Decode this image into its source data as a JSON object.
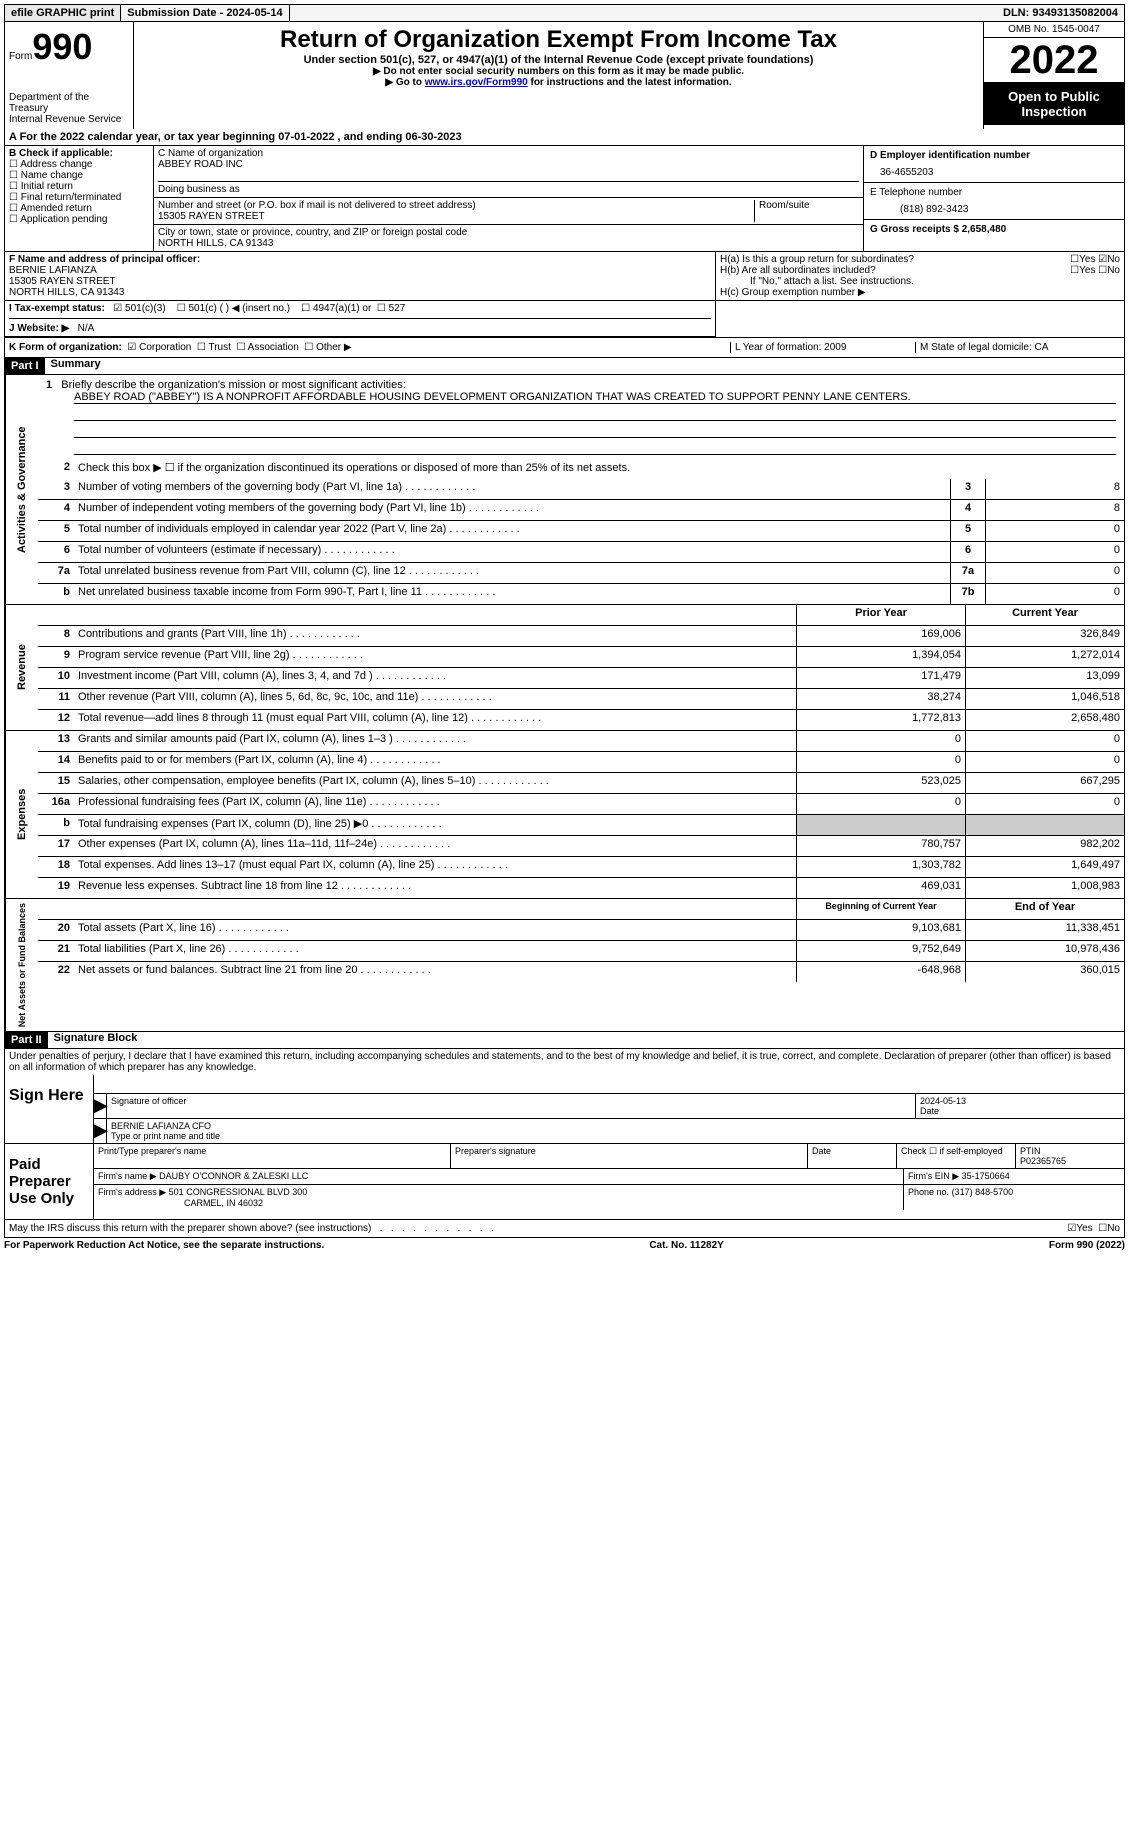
{
  "topbar": {
    "efile": "efile GRAPHIC print",
    "submission_label": "Submission Date - 2024-05-14",
    "dln_label": "DLN: 93493135082004"
  },
  "header": {
    "form_word": "Form",
    "form_num": "990",
    "dept": "Department of the Treasury",
    "irs": "Internal Revenue Service",
    "title": "Return of Organization Exempt From Income Tax",
    "sub": "Under section 501(c), 527, or 4947(a)(1) of the Internal Revenue Code (except private foundations)",
    "note1": "▶ Do not enter social security numbers on this form as it may be made public.",
    "note2_pre": "▶ Go to ",
    "note2_link": "www.irs.gov/Form990",
    "note2_post": " for instructions and the latest information.",
    "omb": "OMB No. 1545-0047",
    "year": "2022",
    "oti": "Open to Public Inspection"
  },
  "rowA": "A For the 2022 calendar year, or tax year beginning 07-01-2022    , and ending 06-30-2023",
  "colB": {
    "label": "B Check if applicable:",
    "opts": [
      "Address change",
      "Name change",
      "Initial return",
      "Final return/terminated",
      "Amended return",
      "Application pending"
    ]
  },
  "colC": {
    "name_label": "C Name of organization",
    "name": "ABBEY ROAD INC",
    "dba_label": "Doing business as",
    "addr_label": "Number and street (or P.O. box if mail is not delivered to street address)",
    "room_label": "Room/suite",
    "addr": "15305 RAYEN STREET",
    "city_label": "City or town, state or province, country, and ZIP or foreign postal code",
    "city": "NORTH HILLS, CA  91343"
  },
  "colD": {
    "ein_label": "D Employer identification number",
    "ein": "36-4655203",
    "tel_label": "E Telephone number",
    "tel": "(818) 892-3423",
    "gross_label": "G Gross receipts $ 2,658,480"
  },
  "rowF": {
    "label": "F Name and address of principal officer:",
    "name": "BERNIE LAFIANZA",
    "addr1": "15305 RAYEN STREET",
    "addr2": "NORTH HILLS, CA  91343"
  },
  "rowH": {
    "ha": "H(a)  Is this a group return for subordinates?",
    "hb": "H(b)  Are all subordinates included?",
    "hb_note": "If \"No,\" attach a list. See instructions.",
    "hc": "H(c)  Group exemption number ▶",
    "yes": "Yes",
    "no": "No"
  },
  "rowI": {
    "label": "I    Tax-exempt status:",
    "o1": "501(c)(3)",
    "o2": "501(c) (   ) ◀ (insert no.)",
    "o3": "4947(a)(1) or",
    "o4": "527"
  },
  "rowJ": {
    "label": "J   Website: ▶",
    "val": "N/A"
  },
  "rowK": {
    "label": "K Form of organization:",
    "o1": "Corporation",
    "o2": "Trust",
    "o3": "Association",
    "o4": "Other ▶"
  },
  "rowL": {
    "label": "L Year of formation: 2009"
  },
  "rowM": {
    "label": "M State of legal domicile: CA"
  },
  "part1": {
    "hdr": "Part I",
    "title": "Summary",
    "l1_label": "Briefly describe the organization's mission or most significant activities:",
    "l1_text": "ABBEY ROAD (\"ABBEY\") IS A NONPROFIT AFFORDABLE HOUSING DEVELOPMENT ORGANIZATION THAT WAS CREATED TO SUPPORT PENNY LANE CENTERS.",
    "l2": "Check this box ▶ ☐ if the organization discontinued its operations or disposed of more than 25% of its net assets.",
    "vtab1": "Activities & Governance",
    "vtab2": "Revenue",
    "vtab3": "Expenses",
    "vtab4": "Net Assets or Fund Balances",
    "lines_gov": [
      {
        "n": "3",
        "d": "Number of voting members of the governing body (Part VI, line 1a)",
        "b": "3",
        "v": "8"
      },
      {
        "n": "4",
        "d": "Number of independent voting members of the governing body (Part VI, line 1b)",
        "b": "4",
        "v": "8"
      },
      {
        "n": "5",
        "d": "Total number of individuals employed in calendar year 2022 (Part V, line 2a)",
        "b": "5",
        "v": "0"
      },
      {
        "n": "6",
        "d": "Total number of volunteers (estimate if necessary)",
        "b": "6",
        "v": "0"
      },
      {
        "n": "7a",
        "d": "Total unrelated business revenue from Part VIII, column (C), line 12",
        "b": "7a",
        "v": "0"
      },
      {
        "n": "b",
        "d": "Net unrelated business taxable income from Form 990-T, Part I, line 11",
        "b": "7b",
        "v": "0"
      }
    ],
    "hdr_prior": "Prior Year",
    "hdr_current": "Current Year",
    "lines_rev": [
      {
        "n": "8",
        "d": "Contributions and grants (Part VIII, line 1h)",
        "p": "169,006",
        "c": "326,849"
      },
      {
        "n": "9",
        "d": "Program service revenue (Part VIII, line 2g)",
        "p": "1,394,054",
        "c": "1,272,014"
      },
      {
        "n": "10",
        "d": "Investment income (Part VIII, column (A), lines 3, 4, and 7d )",
        "p": "171,479",
        "c": "13,099"
      },
      {
        "n": "11",
        "d": "Other revenue (Part VIII, column (A), lines 5, 6d, 8c, 9c, 10c, and 11e)",
        "p": "38,274",
        "c": "1,046,518"
      },
      {
        "n": "12",
        "d": "Total revenue—add lines 8 through 11 (must equal Part VIII, column (A), line 12)",
        "p": "1,772,813",
        "c": "2,658,480"
      }
    ],
    "lines_exp": [
      {
        "n": "13",
        "d": "Grants and similar amounts paid (Part IX, column (A), lines 1–3 )",
        "p": "0",
        "c": "0"
      },
      {
        "n": "14",
        "d": "Benefits paid to or for members (Part IX, column (A), line 4)",
        "p": "0",
        "c": "0"
      },
      {
        "n": "15",
        "d": "Salaries, other compensation, employee benefits (Part IX, column (A), lines 5–10)",
        "p": "523,025",
        "c": "667,295"
      },
      {
        "n": "16a",
        "d": "Professional fundraising fees (Part IX, column (A), line 11e)",
        "p": "0",
        "c": "0"
      },
      {
        "n": "b",
        "d": "Total fundraising expenses (Part IX, column (D), line 25) ▶0",
        "p": "",
        "c": "",
        "shade": true
      },
      {
        "n": "17",
        "d": "Other expenses (Part IX, column (A), lines 11a–11d, 11f–24e)",
        "p": "780,757",
        "c": "982,202"
      },
      {
        "n": "18",
        "d": "Total expenses. Add lines 13–17 (must equal Part IX, column (A), line 25)",
        "p": "1,303,782",
        "c": "1,649,497"
      },
      {
        "n": "19",
        "d": "Revenue less expenses. Subtract line 18 from line 12",
        "p": "469,031",
        "c": "1,008,983"
      }
    ],
    "hdr_begin": "Beginning of Current Year",
    "hdr_end": "End of Year",
    "lines_net": [
      {
        "n": "20",
        "d": "Total assets (Part X, line 16)",
        "p": "9,103,681",
        "c": "11,338,451"
      },
      {
        "n": "21",
        "d": "Total liabilities (Part X, line 26)",
        "p": "9,752,649",
        "c": "10,978,436"
      },
      {
        "n": "22",
        "d": "Net assets or fund balances. Subtract line 21 from line 20",
        "p": "-648,968",
        "c": "360,015"
      }
    ]
  },
  "part2": {
    "hdr": "Part II",
    "title": "Signature Block",
    "decl": "Under penalties of perjury, I declare that I have examined this return, including accompanying schedules and statements, and to the best of my knowledge and belief, it is true, correct, and complete. Declaration of preparer (other than officer) is based on all information of which preparer has any knowledge.",
    "sign_here": "Sign Here",
    "sig_officer": "Signature of officer",
    "sig_date": "2024-05-13",
    "date_label": "Date",
    "officer_name": "BERNIE LAFIANZA  CFO",
    "type_name": "Type or print name and title",
    "paid_prep": "Paid Preparer Use Only",
    "prep_name_label": "Print/Type preparer's name",
    "prep_sig_label": "Preparer's signature",
    "check_self": "Check ☐ if self-employed",
    "ptin_label": "PTIN",
    "ptin": "P02365765",
    "firm_name_label": "Firm's name    ▶",
    "firm_name": "DAUBY O'CONNOR & ZALESKI LLC",
    "firm_ein_label": "Firm's EIN ▶",
    "firm_ein": "35-1750664",
    "firm_addr_label": "Firm's address ▶",
    "firm_addr": "501 CONGRESSIONAL BLVD 300",
    "firm_city": "CARMEL, IN  46032",
    "phone_label": "Phone no.",
    "phone": "(317) 848-5700",
    "discuss": "May the IRS discuss this return with the preparer shown above? (see instructions)",
    "yes": "Yes",
    "no": "No"
  },
  "footer": {
    "left": "For Paperwork Reduction Act Notice, see the separate instructions.",
    "mid": "Cat. No. 11282Y",
    "right": "Form 990 (2022)"
  }
}
